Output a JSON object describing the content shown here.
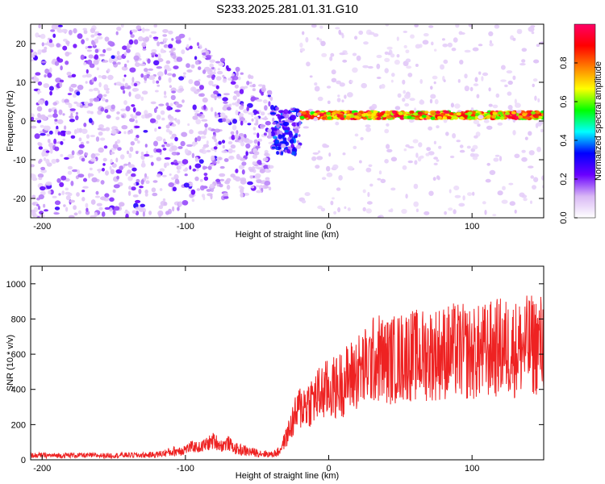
{
  "figure": {
    "title": "S233.2025.281.01.31.G10"
  },
  "chart_data": [
    {
      "type": "heatmap",
      "xlabel": "Height of straight line (km)",
      "ylabel": "Frequency (Hz)",
      "xlim": [
        -208,
        150
      ],
      "ylim": [
        -25,
        25
      ],
      "xticks": [
        -200,
        -100,
        0,
        100
      ],
      "yticks": [
        -20,
        -10,
        0,
        10,
        20
      ],
      "description_of_content": "scattered noise for heights below about -40 km; a stable narrow line near 1.5 Hz for heights above about -30 km",
      "line_frequency_hz": 1.5,
      "colorbar": {
        "label": "Normalized spectral amplitude",
        "range": [
          0,
          1
        ],
        "ticks": [
          0.0,
          0.2,
          0.4,
          0.6,
          0.8
        ],
        "tick_labels": [
          "0.0",
          "0.2",
          "0.4",
          "0.6",
          "0.8"
        ],
        "colormap": [
          "#ffffff",
          "#d9b8f5",
          "#6a00ff",
          "#0000ff",
          "#00ffff",
          "#00ff00",
          "#ffff00",
          "#ff8000",
          "#ff0000",
          "#ff0066"
        ]
      }
    },
    {
      "type": "line",
      "xlabel": "Height of straight line (km)",
      "ylabel": "SNR (10 * v/v)",
      "xlim": [
        -208,
        150
      ],
      "ylim": [
        0,
        1100
      ],
      "xticks": [
        -200,
        -100,
        0,
        100
      ],
      "yticks": [
        0,
        200,
        400,
        600,
        800,
        1000
      ],
      "series": [
        {
          "name": "SNR",
          "color": "#ee2222",
          "x": [
            -208,
            -200,
            -190,
            -180,
            -170,
            -160,
            -150,
            -140,
            -130,
            -120,
            -110,
            -100,
            -95,
            -90,
            -85,
            -80,
            -75,
            -70,
            -65,
            -60,
            -55,
            -50,
            -45,
            -40,
            -35,
            -30,
            -25,
            -20,
            -15,
            -10,
            -5,
            0,
            5,
            10,
            15,
            20,
            25,
            30,
            35,
            40,
            45,
            50,
            55,
            60,
            70,
            80,
            90,
            100,
            110,
            120,
            130,
            140,
            150
          ],
          "y": [
            25,
            25,
            24,
            26,
            25,
            24,
            25,
            27,
            26,
            30,
            45,
            60,
            75,
            70,
            90,
            110,
            80,
            95,
            60,
            55,
            45,
            40,
            35,
            30,
            45,
            120,
            220,
            300,
            320,
            350,
            380,
            400,
            410,
            440,
            470,
            500,
            520,
            560,
            580,
            560,
            570,
            580,
            600,
            590,
            600,
            610,
            620,
            600,
            620,
            640,
            630,
            650,
            660
          ]
        }
      ]
    }
  ]
}
